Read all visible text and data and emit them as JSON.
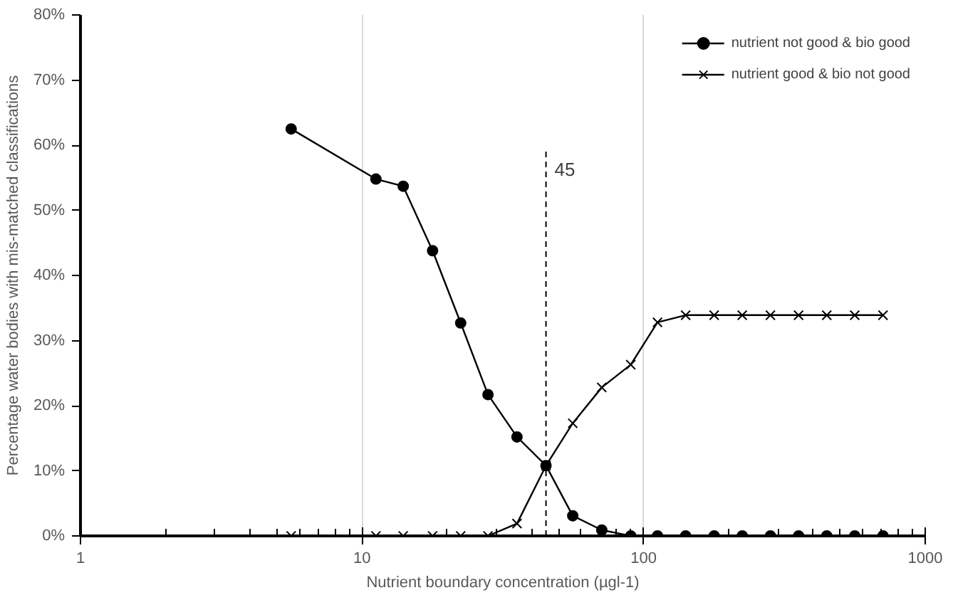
{
  "chart_data": {
    "type": "line",
    "xlabel": "Nutrient boundary concentration (µgl-1)",
    "ylabel": "Percentage water bodies with mis-matched classifications",
    "log": "x",
    "grid": "x",
    "legend": "top right",
    "xlim": [
      1,
      1000
    ],
    "xticks": [
      1,
      10,
      100,
      1000
    ],
    "ylim": [
      0,
      80
    ],
    "yticks": [
      {
        "value": 0,
        "label": "0%"
      },
      {
        "value": 10,
        "label": "10%"
      },
      {
        "value": 20,
        "label": "20%"
      },
      {
        "value": 30,
        "label": "30%"
      },
      {
        "value": 40,
        "label": "40%"
      },
      {
        "value": 50,
        "label": "50%"
      },
      {
        "value": 60,
        "label": "60%"
      },
      {
        "value": 70,
        "label": "70%"
      },
      {
        "value": 80,
        "label": "80%"
      }
    ],
    "x": [
      5.6,
      11.2,
      14,
      17.8,
      22.4,
      28,
      35.5,
      45,
      56,
      71,
      90,
      112,
      141,
      178,
      224,
      282,
      355,
      447,
      562,
      708
    ],
    "series": [
      {
        "name": "nutrient not good & bio good",
        "color": "#000000",
        "marker": "circle",
        "values": [
          62.5,
          54.8,
          53.7,
          43.8,
          32.7,
          21.7,
          15.2,
          10.8,
          3.1,
          0.9,
          0,
          0,
          0,
          0,
          0,
          0,
          0,
          0,
          0,
          0
        ]
      },
      {
        "name": "nutrient good & bio not good",
        "color": "#000000",
        "marker": "cross",
        "values": [
          0,
          0,
          0,
          0,
          0,
          0,
          1.9,
          10.8,
          17.3,
          22.8,
          26.3,
          32.8,
          33.9,
          33.9,
          33.9,
          33.9,
          33.9,
          33.9,
          33.9,
          33.9
        ]
      }
    ],
    "ref_lines": [
      {
        "axis": "x",
        "value": 45,
        "label": "45",
        "line_style": "dashed",
        "color": "#000000"
      }
    ]
  }
}
